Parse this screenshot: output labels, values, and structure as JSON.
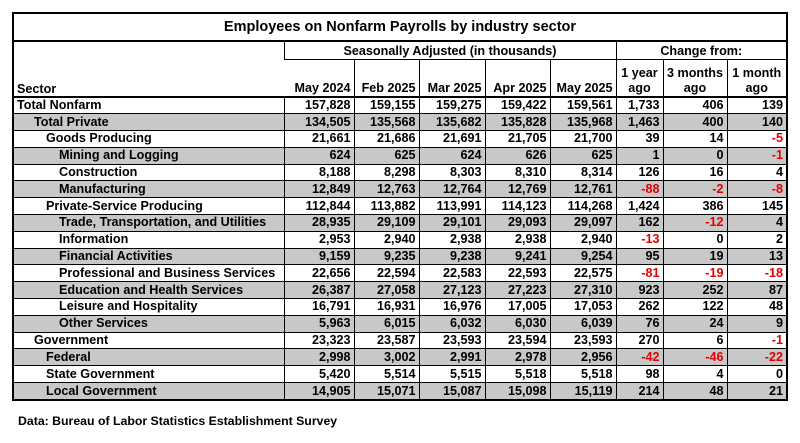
{
  "title": "Employees on Nonfarm Payrolls by industry sector",
  "group_headers": {
    "seasonal": "Seasonally Adjusted (in thousands)",
    "change": "Change from:"
  },
  "columns": [
    "Sector",
    "May 2024",
    "Feb 2025",
    "Mar 2025",
    "Apr 2025",
    "May 2025",
    "1 year ago",
    "3 months ago",
    "1 month ago"
  ],
  "change_columns": [
    [
      "1 year",
      "ago"
    ],
    [
      "3 months",
      "ago"
    ],
    [
      "1 month",
      "ago"
    ]
  ],
  "rows": [
    {
      "sector": "Total Nonfarm",
      "level": 0,
      "values": [
        "157,828",
        "159,155",
        "159,275",
        "159,422",
        "159,561",
        "1,733",
        "406",
        "139"
      ]
    },
    {
      "sector": "Total Private",
      "level": 1,
      "values": [
        "134,505",
        "135,568",
        "135,682",
        "135,828",
        "135,968",
        "1,463",
        "400",
        "140"
      ]
    },
    {
      "sector": "Goods Producing",
      "level": 2,
      "values": [
        "21,661",
        "21,686",
        "21,691",
        "21,705",
        "21,700",
        "39",
        "14",
        "-5"
      ]
    },
    {
      "sector": "Mining and Logging",
      "level": 3,
      "values": [
        "624",
        "625",
        "624",
        "626",
        "625",
        "1",
        "0",
        "-1"
      ]
    },
    {
      "sector": "Construction",
      "level": 3,
      "values": [
        "8,188",
        "8,298",
        "8,303",
        "8,310",
        "8,314",
        "126",
        "16",
        "4"
      ]
    },
    {
      "sector": "Manufacturing",
      "level": 3,
      "values": [
        "12,849",
        "12,763",
        "12,764",
        "12,769",
        "12,761",
        "-88",
        "-2",
        "-8"
      ]
    },
    {
      "sector": "Private-Service Producing",
      "level": 2,
      "values": [
        "112,844",
        "113,882",
        "113,991",
        "114,123",
        "114,268",
        "1,424",
        "386",
        "145"
      ]
    },
    {
      "sector": "Trade, Transportation, and Utilities",
      "level": 3,
      "values": [
        "28,935",
        "29,109",
        "29,101",
        "29,093",
        "29,097",
        "162",
        "-12",
        "4"
      ]
    },
    {
      "sector": "Information",
      "level": 3,
      "values": [
        "2,953",
        "2,940",
        "2,938",
        "2,938",
        "2,940",
        "-13",
        "0",
        "2"
      ]
    },
    {
      "sector": "Financial Activities",
      "level": 3,
      "values": [
        "9,159",
        "9,235",
        "9,238",
        "9,241",
        "9,254",
        "95",
        "19",
        "13"
      ]
    },
    {
      "sector": "Professional and Business Services",
      "level": 3,
      "values": [
        "22,656",
        "22,594",
        "22,583",
        "22,593",
        "22,575",
        "-81",
        "-19",
        "-18"
      ]
    },
    {
      "sector": "Education and Health Services",
      "level": 3,
      "values": [
        "26,387",
        "27,058",
        "27,123",
        "27,223",
        "27,310",
        "923",
        "252",
        "87"
      ]
    },
    {
      "sector": "Leisure and Hospitality",
      "level": 3,
      "values": [
        "16,791",
        "16,931",
        "16,976",
        "17,005",
        "17,053",
        "262",
        "122",
        "48"
      ]
    },
    {
      "sector": "Other Services",
      "level": 3,
      "values": [
        "5,963",
        "6,015",
        "6,032",
        "6,030",
        "6,039",
        "76",
        "24",
        "9"
      ]
    },
    {
      "sector": "Government",
      "level": 1,
      "values": [
        "23,323",
        "23,587",
        "23,593",
        "23,594",
        "23,593",
        "270",
        "6",
        "-1"
      ]
    },
    {
      "sector": "Federal",
      "level": 2,
      "values": [
        "2,998",
        "3,002",
        "2,991",
        "2,978",
        "2,956",
        "-42",
        "-46",
        "-22"
      ]
    },
    {
      "sector": "State Government",
      "level": 2,
      "values": [
        "5,420",
        "5,514",
        "5,515",
        "5,518",
        "5,518",
        "98",
        "4",
        "0"
      ]
    },
    {
      "sector": "Local Government",
      "level": 2,
      "values": [
        "14,905",
        "15,071",
        "15,087",
        "15,098",
        "15,119",
        "214",
        "48",
        "21"
      ]
    }
  ],
  "colors": {
    "negative": "#e60000",
    "shaded_row": "#c8c8c8"
  },
  "footnote": "Data:  Bureau of Labor Statistics Establishment Survey"
}
